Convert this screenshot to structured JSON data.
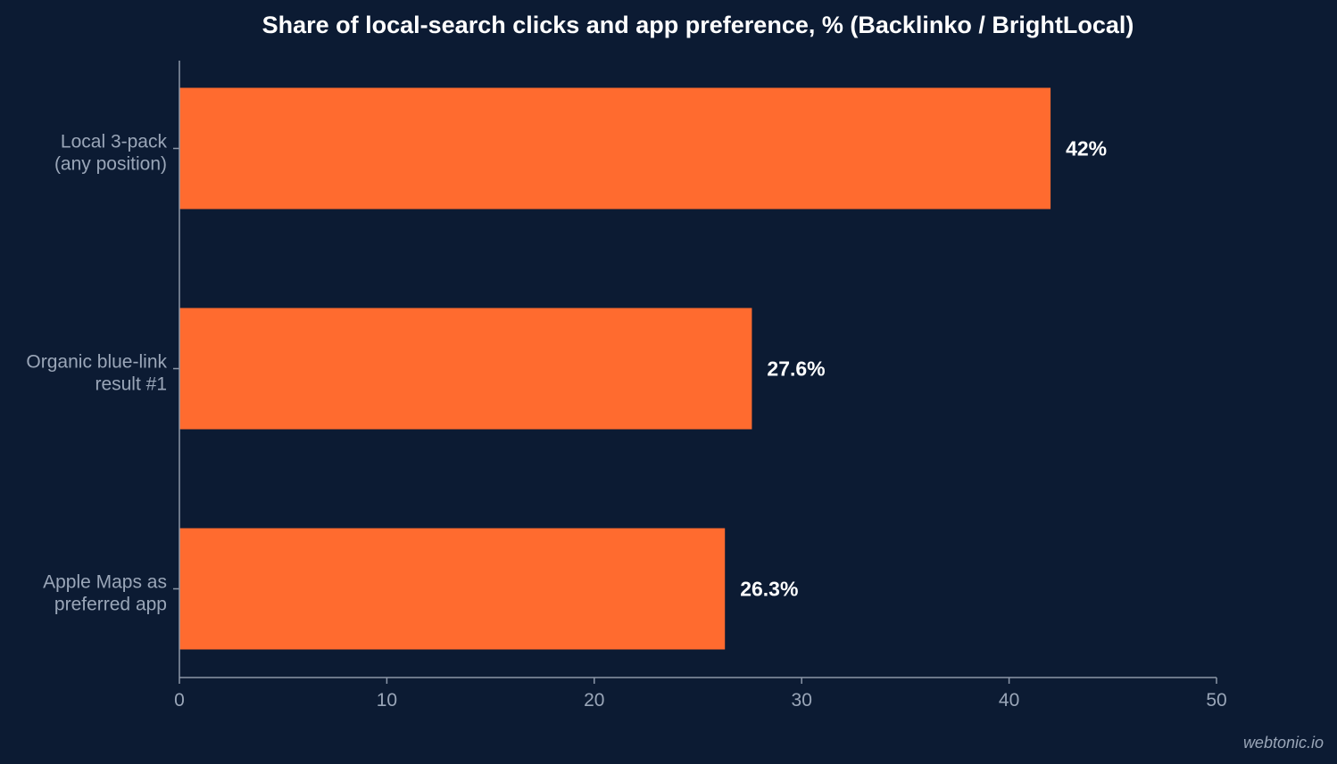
{
  "chart_data": {
    "type": "bar",
    "orientation": "horizontal",
    "title": "Share of local-search clicks and app preference, % (Backlinko / BrightLocal)",
    "categories": [
      [
        "Local 3-pack",
        "(any position)"
      ],
      [
        "Organic blue-link",
        "result #1"
      ],
      [
        "Apple Maps as",
        "preferred app"
      ]
    ],
    "values": [
      42,
      27.6,
      26.3
    ],
    "value_labels": [
      "42%",
      "27.6%",
      "26.3%"
    ],
    "xlim": [
      0,
      50
    ],
    "xticks": [
      0,
      10,
      20,
      30,
      40,
      50
    ],
    "xlabel": "",
    "ylabel": "",
    "grid": false,
    "bar_color": "#ff6b2f"
  },
  "watermark": "webtonic.io",
  "colors": {
    "background": "#0c1b33",
    "axis": "#8c97a8",
    "text_muted": "#9aa6b8",
    "text_strong": "#ffffff"
  }
}
